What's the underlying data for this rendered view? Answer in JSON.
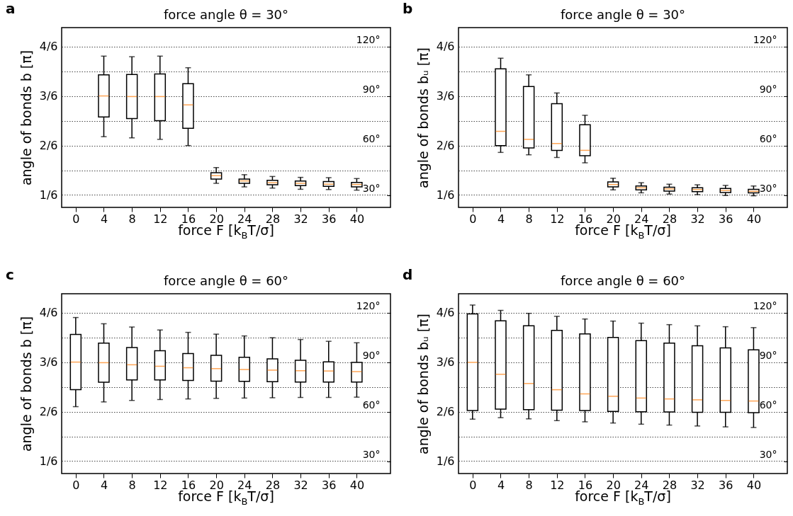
{
  "chart_data": [
    {
      "type": "box",
      "title": "force angle θ = 30°",
      "xlabel": "force F  [k$_{B}$T/σ]",
      "ylabel": "angle of bonds b  [π]",
      "x": [
        4,
        8,
        12,
        16,
        20,
        24,
        28,
        32,
        36,
        40
      ],
      "boxes": [
        {
          "low": 0.363,
          "q1": 0.429,
          "median": 0.5,
          "q3": 0.571,
          "high": 0.634
        },
        {
          "low": 0.359,
          "q1": 0.424,
          "median": 0.498,
          "q3": 0.572,
          "high": 0.632
        },
        {
          "low": 0.354,
          "q1": 0.417,
          "median": 0.498,
          "q3": 0.574,
          "high": 0.634
        },
        {
          "low": 0.333,
          "q1": 0.391,
          "median": 0.47,
          "q3": 0.541,
          "high": 0.595
        },
        {
          "low": 0.206,
          "q1": 0.22,
          "median": 0.232,
          "q3": 0.242,
          "high": 0.259
        },
        {
          "low": 0.194,
          "q1": 0.206,
          "median": 0.214,
          "q3": 0.22,
          "high": 0.235
        },
        {
          "low": 0.19,
          "q1": 0.201,
          "median": 0.208,
          "q3": 0.216,
          "high": 0.229
        },
        {
          "low": 0.186,
          "q1": 0.198,
          "median": 0.206,
          "q3": 0.214,
          "high": 0.226
        },
        {
          "low": 0.185,
          "q1": 0.196,
          "median": 0.203,
          "q3": 0.212,
          "high": 0.225
        },
        {
          "low": 0.183,
          "q1": 0.194,
          "median": 0.202,
          "q3": 0.209,
          "high": 0.222
        }
      ],
      "xlim": [
        -2,
        44.8
      ],
      "xticks": [
        0,
        4,
        8,
        12,
        16,
        20,
        24,
        28,
        32,
        36,
        40
      ],
      "ylim": [
        0.125,
        0.73
      ],
      "yticks": [
        {
          "value": 0.1667,
          "label": "1/6"
        },
        {
          "value": 0.25,
          "label": null
        },
        {
          "value": 0.3333,
          "label": "2/6"
        },
        {
          "value": 0.4167,
          "label": null
        },
        {
          "value": 0.5,
          "label": "3/6"
        },
        {
          "value": 0.5833,
          "label": null
        },
        {
          "value": 0.6667,
          "label": "4/6"
        }
      ],
      "y2lim": [
        22.5,
        131.4
      ],
      "y2ticks": [
        {
          "value": 30,
          "label": "30°"
        },
        {
          "value": 60,
          "label": "60°"
        },
        {
          "value": 90,
          "label": "90°"
        },
        {
          "value": 120,
          "label": "120°"
        }
      ],
      "grid": "y",
      "annotations": [
        "a"
      ]
    },
    {
      "type": "box",
      "title": "force angle θ = 30°",
      "xlabel": "force F  [k$_{B}$T/σ]",
      "ylabel": "angle of bonds bᵤ  [π]",
      "x": [
        4,
        8,
        12,
        16,
        20,
        24,
        28,
        32,
        36,
        40
      ],
      "boxes": [
        {
          "low": 0.31,
          "q1": 0.333,
          "median": 0.381,
          "q3": 0.591,
          "high": 0.627
        },
        {
          "low": 0.302,
          "q1": 0.325,
          "median": 0.354,
          "q3": 0.532,
          "high": 0.571
        },
        {
          "low": 0.293,
          "q1": 0.317,
          "median": 0.34,
          "q3": 0.474,
          "high": 0.51
        },
        {
          "low": 0.275,
          "q1": 0.299,
          "median": 0.317,
          "q3": 0.403,
          "high": 0.435
        },
        {
          "low": 0.184,
          "q1": 0.194,
          "median": 0.202,
          "q3": 0.211,
          "high": 0.223
        },
        {
          "low": 0.174,
          "q1": 0.184,
          "median": 0.191,
          "q3": 0.197,
          "high": 0.208
        },
        {
          "low": 0.17,
          "q1": 0.18,
          "median": 0.187,
          "q3": 0.193,
          "high": 0.203
        },
        {
          "low": 0.168,
          "q1": 0.178,
          "median": 0.185,
          "q3": 0.191,
          "high": 0.201
        },
        {
          "low": 0.165,
          "q1": 0.175,
          "median": 0.182,
          "q3": 0.189,
          "high": 0.199
        },
        {
          "low": 0.164,
          "q1": 0.174,
          "median": 0.179,
          "q3": 0.186,
          "high": 0.197
        }
      ],
      "xlim": [
        -2,
        44.8
      ],
      "xticks": [
        0,
        4,
        8,
        12,
        16,
        20,
        24,
        28,
        32,
        36,
        40
      ],
      "ylim": [
        0.125,
        0.73
      ],
      "yticks": [
        {
          "value": 0.1667,
          "label": "1/6"
        },
        {
          "value": 0.25,
          "label": null
        },
        {
          "value": 0.3333,
          "label": "2/6"
        },
        {
          "value": 0.4167,
          "label": null
        },
        {
          "value": 0.5,
          "label": "3/6"
        },
        {
          "value": 0.5833,
          "label": null
        },
        {
          "value": 0.6667,
          "label": "4/6"
        }
      ],
      "y2lim": [
        22.5,
        131.4
      ],
      "y2ticks": [
        {
          "value": 30,
          "label": "30°"
        },
        {
          "value": 60,
          "label": "60°"
        },
        {
          "value": 90,
          "label": "90°"
        },
        {
          "value": 120,
          "label": "120°"
        }
      ],
      "grid": "y",
      "annotations": [
        "b"
      ]
    },
    {
      "type": "box",
      "title": "force angle θ = 60°",
      "xlabel": "force F  [k$_{B}$T/σ]",
      "ylabel": "angle of bonds b  [π]",
      "x": [
        0,
        4,
        8,
        12,
        16,
        20,
        24,
        28,
        32,
        36,
        40
      ],
      "boxes": [
        {
          "low": 0.35,
          "q1": 0.407,
          "median": 0.5,
          "q3": 0.593,
          "high": 0.65
        },
        {
          "low": 0.366,
          "q1": 0.432,
          "median": 0.498,
          "q3": 0.564,
          "high": 0.629
        },
        {
          "low": 0.371,
          "q1": 0.44,
          "median": 0.491,
          "q3": 0.549,
          "high": 0.618
        },
        {
          "low": 0.374,
          "q1": 0.44,
          "median": 0.486,
          "q3": 0.538,
          "high": 0.608
        },
        {
          "low": 0.376,
          "q1": 0.438,
          "median": 0.481,
          "q3": 0.529,
          "high": 0.6
        },
        {
          "low": 0.378,
          "q1": 0.436,
          "median": 0.478,
          "q3": 0.523,
          "high": 0.594
        },
        {
          "low": 0.379,
          "q1": 0.435,
          "median": 0.475,
          "q3": 0.516,
          "high": 0.588
        },
        {
          "low": 0.38,
          "q1": 0.434,
          "median": 0.473,
          "q3": 0.511,
          "high": 0.582
        },
        {
          "low": 0.381,
          "q1": 0.433,
          "median": 0.471,
          "q3": 0.506,
          "high": 0.576
        },
        {
          "low": 0.381,
          "q1": 0.433,
          "median": 0.47,
          "q3": 0.501,
          "high": 0.57
        },
        {
          "low": 0.382,
          "q1": 0.433,
          "median": 0.468,
          "q3": 0.499,
          "high": 0.565
        }
      ],
      "xlim": [
        -2,
        44.8
      ],
      "xticks": [
        0,
        4,
        8,
        12,
        16,
        20,
        24,
        28,
        32,
        36,
        40
      ],
      "ylim": [
        0.125,
        0.73
      ],
      "yticks": [
        {
          "value": 0.1667,
          "label": "1/6"
        },
        {
          "value": 0.25,
          "label": null
        },
        {
          "value": 0.3333,
          "label": "2/6"
        },
        {
          "value": 0.4167,
          "label": null
        },
        {
          "value": 0.5,
          "label": "3/6"
        },
        {
          "value": 0.5833,
          "label": null
        },
        {
          "value": 0.6667,
          "label": "4/6"
        }
      ],
      "y2lim": [
        22.5,
        131.4
      ],
      "y2ticks": [
        {
          "value": 30,
          "label": "30°"
        },
        {
          "value": 60,
          "label": "60°"
        },
        {
          "value": 90,
          "label": "90°"
        },
        {
          "value": 120,
          "label": "120°"
        }
      ],
      "grid": "y",
      "annotations": [
        "c"
      ]
    },
    {
      "type": "box",
      "title": "force angle θ = 60°",
      "xlabel": "force F  [k$_{B}$T/σ]",
      "ylabel": "angle of bonds bᵤ  [π]",
      "x": [
        0,
        4,
        8,
        12,
        16,
        20,
        24,
        28,
        32,
        36,
        40
      ],
      "boxes": [
        {
          "low": 0.308,
          "q1": 0.337,
          "median": 0.499,
          "q3": 0.662,
          "high": 0.692
        },
        {
          "low": 0.313,
          "q1": 0.342,
          "median": 0.459,
          "q3": 0.639,
          "high": 0.674
        },
        {
          "low": 0.309,
          "q1": 0.34,
          "median": 0.428,
          "q3": 0.622,
          "high": 0.664
        },
        {
          "low": 0.303,
          "q1": 0.338,
          "median": 0.407,
          "q3": 0.607,
          "high": 0.654
        },
        {
          "low": 0.299,
          "q1": 0.337,
          "median": 0.393,
          "q3": 0.595,
          "high": 0.645
        },
        {
          "low": 0.295,
          "q1": 0.334,
          "median": 0.385,
          "q3": 0.583,
          "high": 0.638
        },
        {
          "low": 0.291,
          "q1": 0.333,
          "median": 0.379,
          "q3": 0.572,
          "high": 0.631
        },
        {
          "low": 0.288,
          "q1": 0.332,
          "median": 0.376,
          "q3": 0.564,
          "high": 0.626
        },
        {
          "low": 0.285,
          "q1": 0.331,
          "median": 0.373,
          "q3": 0.555,
          "high": 0.622
        },
        {
          "low": 0.282,
          "q1": 0.331,
          "median": 0.371,
          "q3": 0.548,
          "high": 0.619
        },
        {
          "low": 0.28,
          "q1": 0.33,
          "median": 0.369,
          "q3": 0.541,
          "high": 0.616
        }
      ],
      "xlim": [
        -2,
        44.8
      ],
      "xticks": [
        0,
        4,
        8,
        12,
        16,
        20,
        24,
        28,
        32,
        36,
        40
      ],
      "ylim": [
        0.125,
        0.73
      ],
      "yticks": [
        {
          "value": 0.1667,
          "label": "1/6"
        },
        {
          "value": 0.25,
          "label": null
        },
        {
          "value": 0.3333,
          "label": "2/6"
        },
        {
          "value": 0.4167,
          "label": null
        },
        {
          "value": 0.5,
          "label": "3/6"
        },
        {
          "value": 0.5833,
          "label": null
        },
        {
          "value": 0.6667,
          "label": "4/6"
        }
      ],
      "y2lim": [
        22.5,
        131.4
      ],
      "y2ticks": [
        {
          "value": 30,
          "label": "30°"
        },
        {
          "value": 60,
          "label": "60°"
        },
        {
          "value": 90,
          "label": "90°"
        },
        {
          "value": 120,
          "label": "120°"
        }
      ],
      "grid": "y",
      "annotations": [
        "d"
      ]
    }
  ]
}
